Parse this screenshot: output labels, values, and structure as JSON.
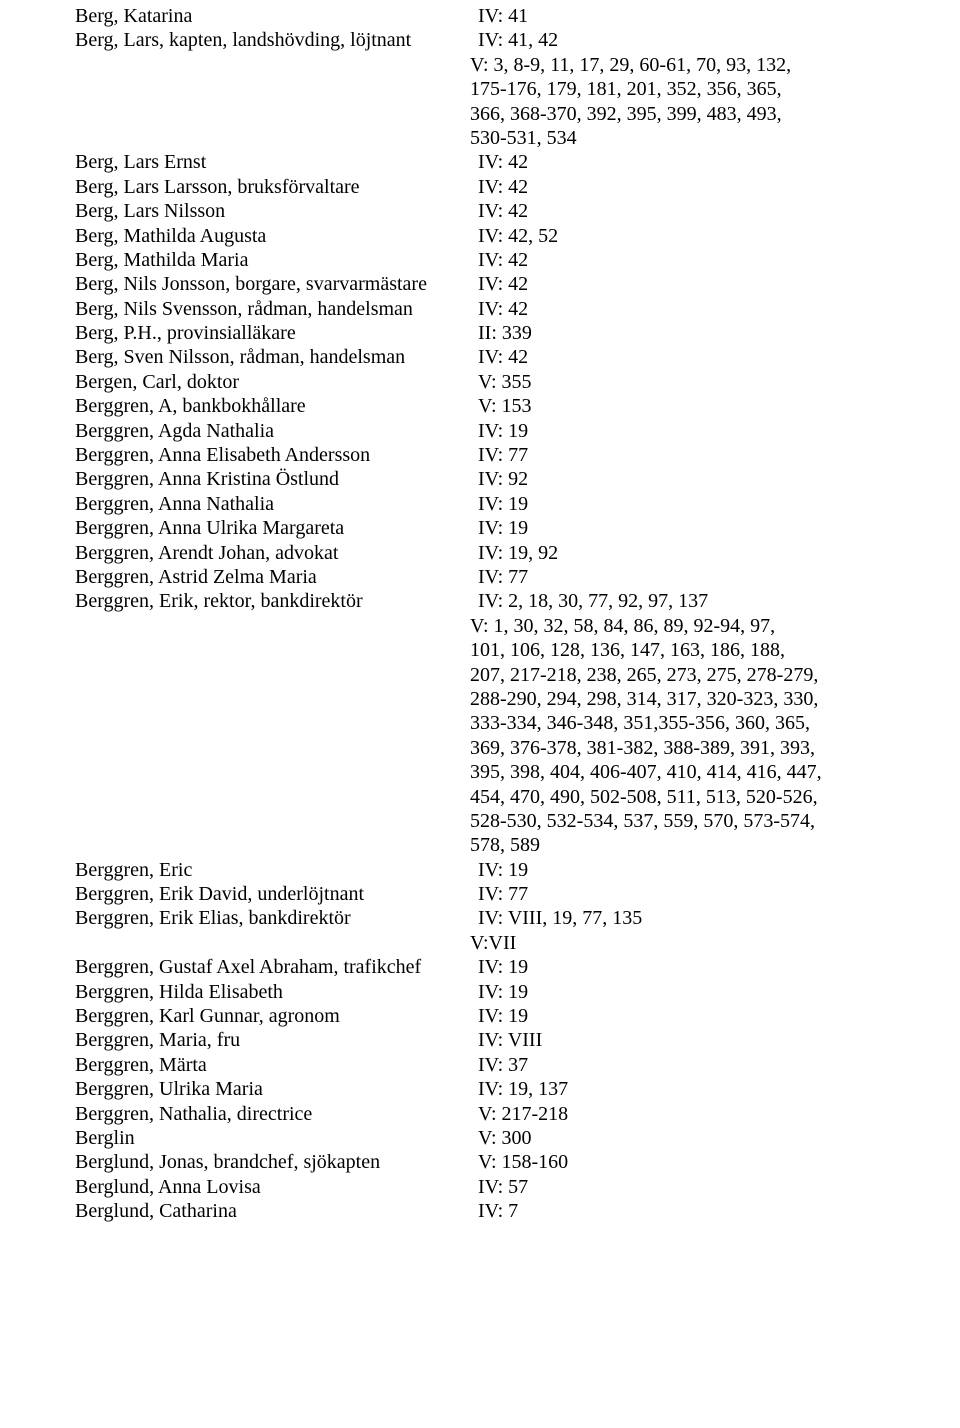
{
  "entries": [
    {
      "name": "Berg, Katarina",
      "refs": "IV: 41"
    },
    {
      "name": "Berg, Lars, kapten, landshövding, löjtnant",
      "refs": "IV: 41, 42"
    },
    {
      "cont": "V: 3, 8-9, 11, 17, 29, 60-61, 70, 93, 132,"
    },
    {
      "cont": "175-176, 179, 181, 201, 352, 356, 365,"
    },
    {
      "cont": "366, 368-370, 392, 395, 399, 483, 493,"
    },
    {
      "cont": "530-531, 534"
    },
    {
      "name": "Berg, Lars Ernst",
      "refs": "IV: 42"
    },
    {
      "name": "Berg, Lars Larsson, bruksförvaltare",
      "refs": "IV: 42"
    },
    {
      "name": "Berg, Lars Nilsson",
      "refs": "IV: 42"
    },
    {
      "name": "Berg, Mathilda Augusta",
      "refs": "IV: 42, 52"
    },
    {
      "name": "Berg, Mathilda Maria",
      "refs": "IV: 42"
    },
    {
      "name": "Berg, Nils Jonsson, borgare, svarvarmästare",
      "refs": "IV: 42"
    },
    {
      "name": "Berg, Nils Svensson, rådman, handelsman",
      "refs": "IV: 42"
    },
    {
      "name": "Berg, P.H., provinsialläkare",
      "refs": "II: 339"
    },
    {
      "name": "Berg, Sven Nilsson, rådman, handelsman",
      "refs": "IV: 42"
    },
    {
      "name": "Bergen, Carl, doktor",
      "refs": "V: 355"
    },
    {
      "name": "Berggren, A, bankbokhållare",
      "refs": "V: 153"
    },
    {
      "name": "Berggren, Agda Nathalia",
      "refs": "IV: 19"
    },
    {
      "name": "Berggren, Anna Elisabeth Andersson",
      "refs": "IV: 77"
    },
    {
      "name": "Berggren, Anna Kristina Östlund",
      "refs": "IV: 92"
    },
    {
      "name": "Berggren, Anna Nathalia",
      "refs": "IV: 19"
    },
    {
      "name": "Berggren, Anna Ulrika Margareta",
      "refs": "IV: 19"
    },
    {
      "name": "Berggren, Arendt Johan, advokat",
      "refs": "IV: 19, 92"
    },
    {
      "name": "Berggren, Astrid Zelma Maria",
      "refs": "IV: 77"
    },
    {
      "name": "Berggren, Erik, rektor, bankdirektör",
      "refs": "IV: 2, 18, 30, 77, 92, 97, 137"
    },
    {
      "cont": "V: 1, 30, 32, 58, 84, 86, 89, 92-94, 97,"
    },
    {
      "cont": "101, 106, 128, 136, 147, 163, 186, 188,"
    },
    {
      "cont": "207, 217-218, 238, 265, 273, 275, 278-279,"
    },
    {
      "cont": "288-290, 294, 298, 314, 317, 320-323, 330,"
    },
    {
      "cont": "333-334, 346-348, 351,355-356, 360, 365,"
    },
    {
      "cont": "369, 376-378, 381-382, 388-389, 391, 393,"
    },
    {
      "cont": "395, 398, 404, 406-407, 410, 414, 416, 447,"
    },
    {
      "cont": "454, 470, 490, 502-508, 511, 513, 520-526,"
    },
    {
      "cont": "528-530, 532-534, 537, 559, 570, 573-574,"
    },
    {
      "cont": "578, 589"
    },
    {
      "name": "Berggren, Eric",
      "refs": "IV: 19"
    },
    {
      "name": "Berggren, Erik David, underlöjtnant",
      "refs": "IV: 77"
    },
    {
      "name": "Berggren, Erik Elias, bankdirektör",
      "refs": "IV: VIII, 19, 77, 135"
    },
    {
      "cont": "V:VII"
    },
    {
      "name": "Berggren, Gustaf Axel Abraham, trafikchef",
      "refs": "IV: 19"
    },
    {
      "name": "Berggren, Hilda Elisabeth",
      "refs": "IV: 19"
    },
    {
      "name": "Berggren, Karl Gunnar, agronom",
      "refs": "IV: 19"
    },
    {
      "name": "Berggren, Maria, fru",
      "refs": "IV: VIII"
    },
    {
      "name": "Berggren, Märta",
      "refs": "IV: 37"
    },
    {
      "name": "Berggren, Ulrika Maria",
      "refs": "IV: 19, 137"
    },
    {
      "name": "Berggren, Nathalia, directrice",
      "refs": "V: 217-218"
    },
    {
      "name": "Berglin",
      "refs": "V: 300"
    },
    {
      "name": "Berglund, Jonas, brandchef, sjökapten",
      "refs": "V: 158-160"
    },
    {
      "name": "Berglund, Anna Lovisa",
      "refs": "IV: 57"
    },
    {
      "name": "Berglund, Catharina",
      "refs": "IV: 7"
    }
  ]
}
